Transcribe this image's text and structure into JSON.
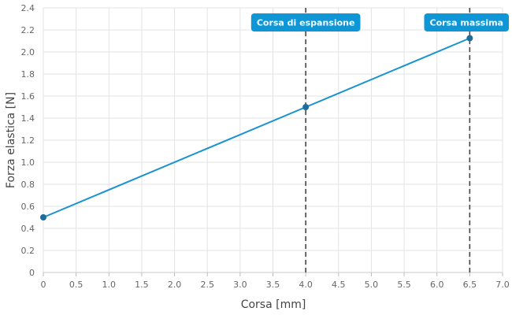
{
  "colors": {
    "series_line": "#1a93d1",
    "point_fill": "#1a6ea0",
    "annotation_bg": "#0f96d6",
    "marker_line": "#444444",
    "grid": "#e3e3e3"
  },
  "chart_data": {
    "type": "line",
    "xlabel": "Corsa [mm]",
    "ylabel": "Forza elastica [N]",
    "xlim": [
      0,
      7
    ],
    "ylim": [
      0,
      2.4
    ],
    "grid": true,
    "x_ticks": [
      "0",
      "0.5",
      "1.0",
      "1.5",
      "2.0",
      "2.5",
      "3.0",
      "3.5",
      "4.0",
      "4.5",
      "5.0",
      "5.5",
      "6.0",
      "6.5",
      "7.0"
    ],
    "y_ticks": [
      "0",
      "0.2",
      "0.4",
      "0.6",
      "0.8",
      "1.0",
      "1.2",
      "1.4",
      "1.6",
      "1.8",
      "2.0",
      "2.2",
      "2.4"
    ],
    "series": [
      {
        "points": [
          {
            "x": 0,
            "y": 0.5
          },
          {
            "x": 4.0,
            "y": 1.5
          },
          {
            "x": 6.5,
            "y": 2.125
          }
        ]
      }
    ],
    "markers": [
      {
        "x": 4.0,
        "label": "Corsa di espansione"
      },
      {
        "x": 6.5,
        "label": "Corsa massima"
      }
    ]
  }
}
